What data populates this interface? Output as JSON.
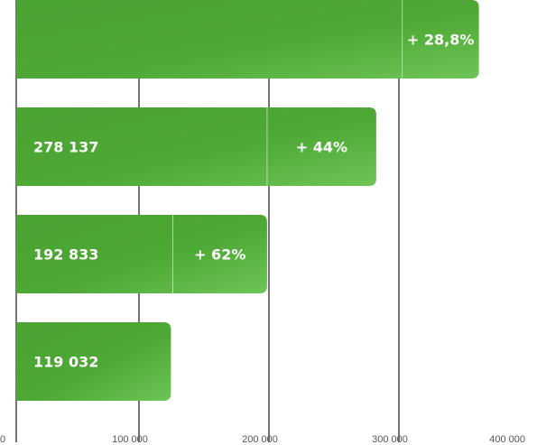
{
  "chart_data": {
    "type": "bar",
    "orientation": "horizontal",
    "title": "",
    "xlabel": "",
    "ylabel": "",
    "xlim": [
      0,
      400000
    ],
    "x_ticks": [
      0,
      100000,
      200000,
      300000,
      400000
    ],
    "x_tick_labels": [
      "0",
      "100 000",
      "200 000",
      "300 000",
      "400 000"
    ],
    "grid": true,
    "legend": "none",
    "bar_color_start": "#4aa332",
    "bar_color_end": "#6cc555",
    "bars": [
      {
        "base_value": 297000,
        "base_label": "",
        "increase_value": 356000,
        "increase_label": "+ 28,8%"
      },
      {
        "base_value": 193000,
        "base_label": "278 137",
        "increase_value": 277000,
        "increase_label": "+ 44%"
      },
      {
        "base_value": 120500,
        "base_label": "192 833",
        "increase_value": 193000,
        "increase_label": "+ 62%"
      },
      {
        "base_value": 119032,
        "base_label": "119 032",
        "increase_value": null,
        "increase_label": ""
      }
    ]
  }
}
